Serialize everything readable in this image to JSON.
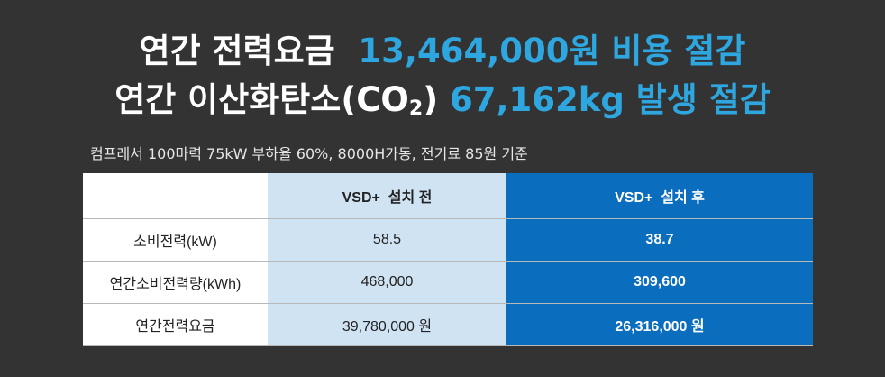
{
  "headline": {
    "line1": {
      "label": "연간 전력요금",
      "value": "13,464,000원 비용 절감"
    },
    "line2": {
      "label_parts": [
        "연간 이산화탄소(CO",
        "2",
        ")"
      ],
      "value": "67,162kg 발생 절감"
    }
  },
  "subtitle": "컴프레서 100마력 75kW 부하율 60%, 8000H가동, 전기료 85원 기준",
  "table": {
    "header": [
      "VSD+  설치 전",
      "VSD+  설치 후"
    ],
    "rows": [
      [
        "소비전력(kW)",
        "58.5",
        "38.7"
      ],
      [
        "연간소비전력량(kWh)",
        "468,000",
        "309,600"
      ],
      [
        "연간전력요금",
        "39,780,000 원",
        "26,316,000 원"
      ]
    ]
  }
}
